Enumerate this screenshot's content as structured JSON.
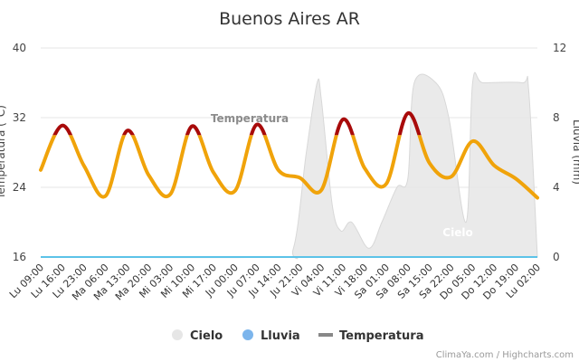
{
  "chart_data": {
    "type": "line",
    "title": "Buenos Aires AR",
    "ylabel_left": "Temperatura (°C)",
    "ylabel_right": "Lluvia (mm)",
    "y_left_range": [
      16,
      40
    ],
    "y_left_ticks": [
      "16",
      "24",
      "32",
      "40"
    ],
    "y_right_range": [
      0,
      12
    ],
    "y_right_ticks": [
      "0",
      "4",
      "8",
      "12"
    ],
    "x_ticks": [
      "Lu 09:00",
      "Lu 16:00",
      "Lu 23:00",
      "Ma 06:00",
      "Ma 13:00",
      "Ma 20:00",
      "Mi 03:00",
      "Mi 10:00",
      "Mi 17:00",
      "Ju 00:00",
      "Ju 07:00",
      "Ju 14:00",
      "Ju 21:00",
      "Vi 04:00",
      "Vi 11:00",
      "Vi 18:00",
      "Sa 01:00",
      "Sa 08:00",
      "Sa 15:00",
      "Sa 22:00",
      "Do 05:00",
      "Do 12:00",
      "Do 19:00",
      "Lu 02:00"
    ],
    "grid": true,
    "legend_position": "bottom",
    "threshold_c": 30,
    "colors": {
      "temperature_normal": "#f0a30a",
      "temperature_hot": "#a80a0a",
      "rain": "#5cc3e8",
      "sky": "#e6e6e6",
      "grid": "#e6e6e6"
    },
    "series": [
      {
        "name": "Temperatura",
        "x": [
          0,
          1,
          2,
          3,
          4,
          5,
          6,
          7,
          8,
          9,
          10,
          11,
          12,
          13,
          14,
          15,
          16,
          17,
          18,
          19,
          20,
          21,
          22,
          23
        ],
        "values": [
          26.0,
          31.1,
          26.5,
          23.0,
          30.5,
          25.4,
          23.2,
          31.0,
          25.7,
          23.6,
          31.2,
          26.0,
          25.1,
          23.7,
          31.8,
          26.2,
          24.4,
          32.5,
          26.8,
          25.2,
          29.3,
          26.5,
          25.0,
          22.8
        ]
      },
      {
        "name": "Lluvia",
        "x": [
          0,
          23
        ],
        "values": [
          0,
          0
        ]
      },
      {
        "name": "Cielo",
        "x": [
          0,
          10.8,
          11.7,
          12.3,
          12.8,
          13.0,
          13.5,
          13.9,
          14.4,
          15.2,
          15.8,
          16.5,
          17.0,
          17.3,
          18.3,
          18.9,
          19.7,
          20.0,
          20.5,
          22.3,
          22.6,
          23.0
        ],
        "values": [
          0,
          0,
          0.5,
          6.0,
          10.0,
          9.0,
          3.0,
          1.5,
          2.0,
          0.5,
          2.0,
          4.0,
          4.5,
          10.0,
          10.0,
          8.0,
          2.0,
          10.0,
          10.0,
          10.0,
          9.5,
          0
        ]
      }
    ],
    "legend": [
      {
        "name": "Cielo",
        "symbol": "circle",
        "color": "#e6e6e6"
      },
      {
        "name": "Lluvia",
        "symbol": "circle",
        "color": "#7cb5ec"
      },
      {
        "name": "Temperatura",
        "symbol": "line",
        "color": "#888888"
      }
    ],
    "annotations": {
      "temperature_label": "Temperatura",
      "sky_label": "Cielo"
    },
    "credits": "ClimaYa.com / Highcharts.com"
  }
}
